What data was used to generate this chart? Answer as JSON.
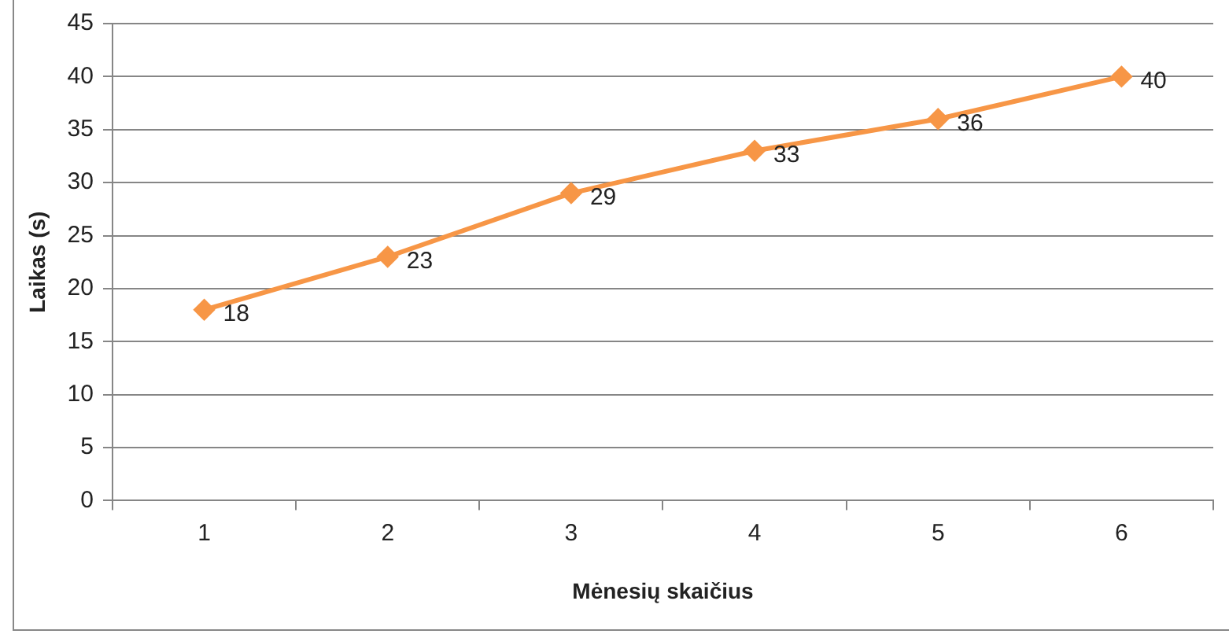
{
  "chart_data": {
    "type": "line",
    "xlabel": "Mėnesių skaičius",
    "ylabel": "Laikas (s)",
    "categories": [
      "1",
      "2",
      "3",
      "4",
      "5",
      "6"
    ],
    "series": [
      {
        "color": "#f79646",
        "values": [
          18,
          23,
          29,
          33,
          36,
          40
        ]
      }
    ],
    "ylim": [
      0,
      45
    ],
    "yticks": [
      0,
      5,
      10,
      15,
      20,
      25,
      30,
      35,
      40,
      45
    ],
    "grid": "y",
    "legend": false,
    "marker": "diamond",
    "line_style": "solid",
    "data_labels": true
  }
}
